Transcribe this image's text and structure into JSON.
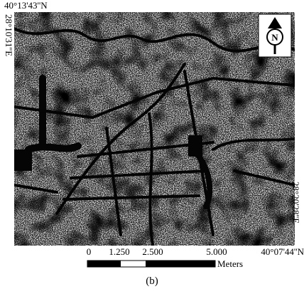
{
  "coordinates": {
    "top_left": "40°13'43''N",
    "left": "28°10'31''E",
    "right": "28°20'28''E",
    "bottom_right": "40°07'44''N"
  },
  "north_arrow": {
    "label": "N"
  },
  "scale_bar": {
    "labels": [
      "0",
      "1.250",
      "2.500",
      "5.000"
    ],
    "unit": "Meters"
  },
  "caption": "(b)"
}
